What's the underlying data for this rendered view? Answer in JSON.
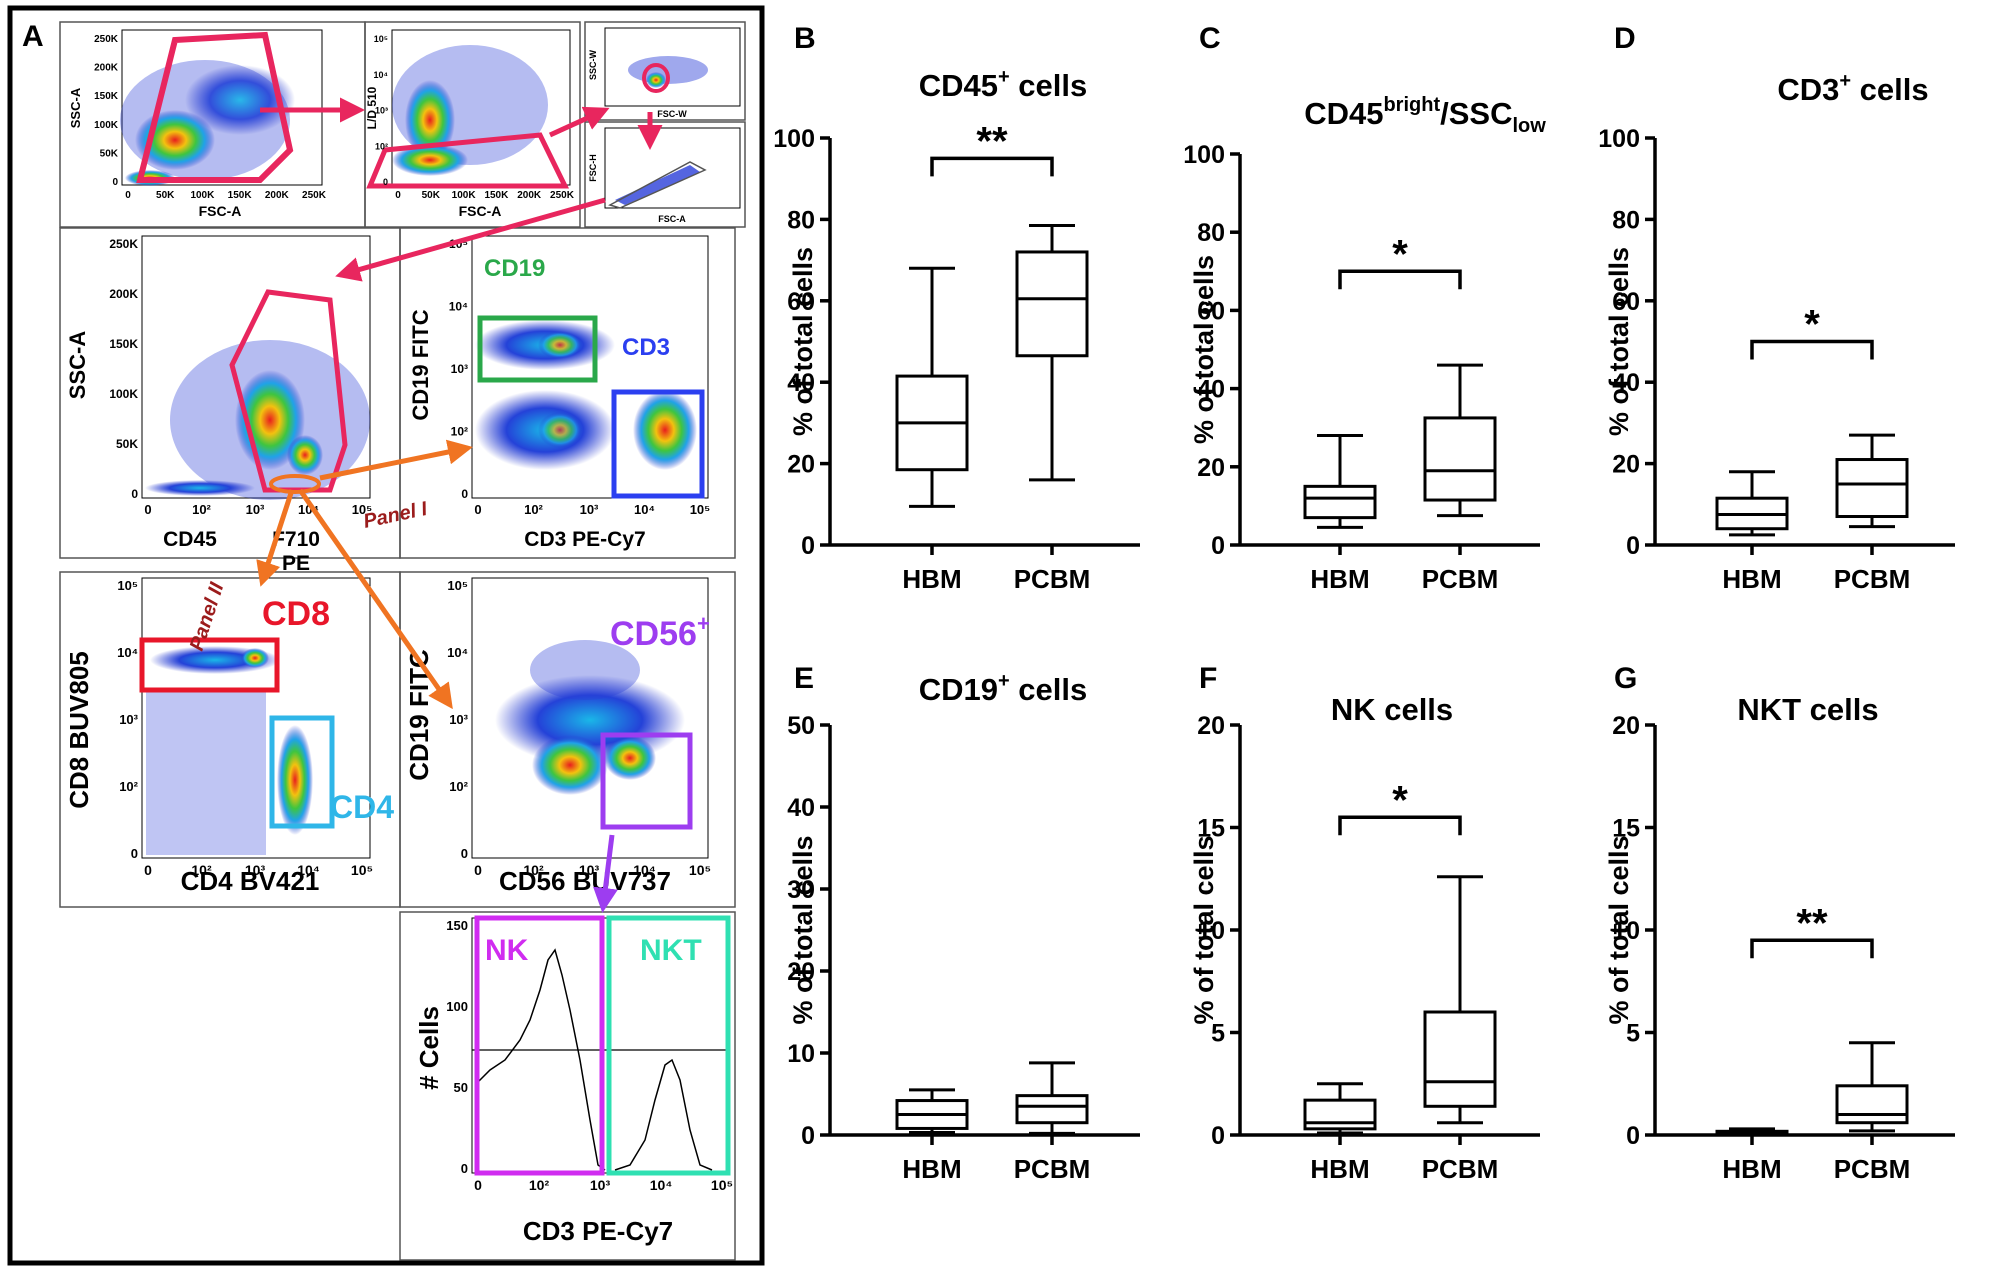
{
  "panel_a": {
    "letter": "A",
    "plot1": {
      "ylabel": "SSC-A",
      "xlabel": "FSC-A",
      "yticks": [
        "250K",
        "200K",
        "150K",
        "100K",
        "50K",
        "0"
      ],
      "xticks": [
        "0",
        "50K",
        "100K",
        "150K",
        "200K",
        "250K"
      ]
    },
    "plot2": {
      "ylabel": "L/D 510",
      "xlabel": "FSC-A",
      "yticks": [
        "10⁵",
        "10⁴",
        "10³",
        "10²",
        "0"
      ],
      "xticks": [
        "0",
        "50K",
        "100K",
        "150K",
        "200K",
        "250K"
      ]
    },
    "plot3": {
      "ylabel": "SSC-W",
      "xlabel": "FSC-W"
    },
    "plot4": {
      "ylabel": "FSC-H",
      "xlabel": "FSC-A"
    },
    "plot5": {
      "ylabel": "SSC-A",
      "xlabel": "CD45",
      "xlabel_b": "PE",
      "yticks": [
        "250K",
        "200K",
        "150K",
        "100K",
        "50K",
        "0"
      ],
      "xticks": [
        "0",
        "10²",
        "10³",
        "10⁴",
        "10⁵"
      ]
    },
    "plot6": {
      "ylabel": "CD19 FITC",
      "xlabel": "CD3 PE-Cy7",
      "gate_cd19": "CD19",
      "gate_cd3": "CD3",
      "yticks": [
        "10⁵",
        "10⁴",
        "10³",
        "10²",
        "0"
      ],
      "xticks": [
        "0",
        "10²",
        "10³",
        "10⁴",
        "10⁵"
      ]
    },
    "plot7": {
      "ylabel": "CD8 BUV805",
      "xlabel": "CD4 BV421",
      "gate_cd8": "CD8",
      "gate_cd4": "CD4",
      "yticks": [
        "10⁵",
        "10⁴",
        "10³",
        "10²",
        "0"
      ],
      "xticks": [
        "0",
        "10²",
        "10³",
        "10⁴",
        "10⁵"
      ]
    },
    "plot8": {
      "ylabel": "CD19 FITC",
      "xlabel": "CD56 BUV737",
      "gate_cd56": "CD56",
      "gate_cd56_sup": "+",
      "yticks": [
        "10⁵",
        "10⁴",
        "10³",
        "10²",
        "0"
      ],
      "xticks": [
        "0",
        "10²",
        "10³",
        "10⁴",
        "10⁵"
      ]
    },
    "plot9": {
      "ylabel": "# Cells",
      "xlabel": "CD3 PE-Cy7",
      "gate_nk": "NK",
      "gate_nkt": "NKT",
      "yticks": [
        "150",
        "100",
        "50",
        "0"
      ],
      "xticks": [
        "0",
        "10²",
        "10³",
        "10⁴",
        "10⁵"
      ]
    },
    "annotations": {
      "f710": "F710",
      "panel_i": "Panel I",
      "panel_ii": "Panel II"
    }
  },
  "colors": {
    "gate_pink": "#e8265e",
    "arrow_orange": "#f07422",
    "cd19_green": "#2aa84a",
    "cd3_blue": "#2b3ff0",
    "cd8_red": "#e8162a",
    "cd4_cyan": "#2fb6e8",
    "cd56_purple": "#9d3df0",
    "nk_magenta": "#d02cf0",
    "nkt_teal": "#2fe0b2",
    "panel_label_red": "#9b1c1c"
  },
  "chart_data": [
    {
      "panel": "B",
      "type": "box",
      "title": "CD45",
      "title_sup": "+",
      "title_suffix": " cells",
      "ylabel": "% of total cells",
      "ylim": [
        0,
        100
      ],
      "yticks": [
        0,
        20,
        40,
        60,
        80,
        100
      ],
      "categories": [
        "HBM",
        "PCBM"
      ],
      "boxes": [
        {
          "min": 9.5,
          "q1": 18.5,
          "median": 30,
          "q3": 41.5,
          "max": 68
        },
        {
          "min": 16,
          "q1": 46.5,
          "median": 60.5,
          "q3": 72,
          "max": 78.5
        }
      ],
      "significance": {
        "label": "**",
        "y": 95
      }
    },
    {
      "panel": "C",
      "type": "box",
      "title": "CD45",
      "title_sup": "bright",
      "title_mid": "/SSC",
      "title_sub": "low",
      "ylabel": "% of total cells",
      "ylim": [
        0,
        100
      ],
      "yticks": [
        0,
        20,
        40,
        60,
        80,
        100
      ],
      "categories": [
        "HBM",
        "PCBM"
      ],
      "boxes": [
        {
          "min": 4.5,
          "q1": 7,
          "median": 12,
          "q3": 15,
          "max": 28
        },
        {
          "min": 7.5,
          "q1": 11.5,
          "median": 19,
          "q3": 32.5,
          "max": 46
        }
      ],
      "significance": {
        "label": "*",
        "y": 70
      }
    },
    {
      "panel": "D",
      "type": "box",
      "title": "CD3",
      "title_sup": "+",
      "title_suffix": " cells",
      "ylabel": "% of total cells",
      "ylim": [
        0,
        100
      ],
      "yticks": [
        0,
        20,
        40,
        60,
        80,
        100
      ],
      "categories": [
        "HBM",
        "PCBM"
      ],
      "boxes": [
        {
          "min": 2.5,
          "q1": 4,
          "median": 7.5,
          "q3": 11.5,
          "max": 18
        },
        {
          "min": 4.5,
          "q1": 7,
          "median": 15,
          "q3": 21,
          "max": 27
        }
      ],
      "significance": {
        "label": "*",
        "y": 50
      }
    },
    {
      "panel": "E",
      "type": "box",
      "title": "CD19",
      "title_sup": "+",
      "title_suffix": " cells",
      "ylabel": "% of total cells",
      "ylim": [
        0,
        50
      ],
      "yticks": [
        0,
        10,
        20,
        30,
        40,
        50
      ],
      "categories": [
        "HBM",
        "PCBM"
      ],
      "boxes": [
        {
          "min": 0.3,
          "q1": 0.8,
          "median": 2.5,
          "q3": 4.2,
          "max": 5.5
        },
        {
          "min": 0.2,
          "q1": 1.5,
          "median": 3.5,
          "q3": 4.8,
          "max": 8.8
        }
      ],
      "significance": null
    },
    {
      "panel": "F",
      "type": "box",
      "title": "NK cells",
      "ylabel": "% of total cells",
      "ylim": [
        0,
        20
      ],
      "yticks": [
        0,
        5,
        10,
        15,
        20
      ],
      "categories": [
        "HBM",
        "PCBM"
      ],
      "boxes": [
        {
          "min": 0.1,
          "q1": 0.3,
          "median": 0.6,
          "q3": 1.7,
          "max": 2.5
        },
        {
          "min": 0.6,
          "q1": 1.4,
          "median": 2.6,
          "q3": 6,
          "max": 12.6
        }
      ],
      "significance": {
        "label": "*",
        "y": 15.5
      }
    },
    {
      "panel": "G",
      "type": "box",
      "title": "NKT cells",
      "ylabel": "% of total cells",
      "ylim": [
        0,
        20
      ],
      "yticks": [
        0,
        5,
        10,
        15,
        20
      ],
      "categories": [
        "HBM",
        "PCBM"
      ],
      "boxes": [
        {
          "min": 0.02,
          "q1": 0.05,
          "median": 0.1,
          "q3": 0.18,
          "max": 0.3
        },
        {
          "min": 0.2,
          "q1": 0.6,
          "median": 1,
          "q3": 2.4,
          "max": 4.5
        }
      ],
      "significance": {
        "label": "**",
        "y": 9.5
      }
    }
  ]
}
